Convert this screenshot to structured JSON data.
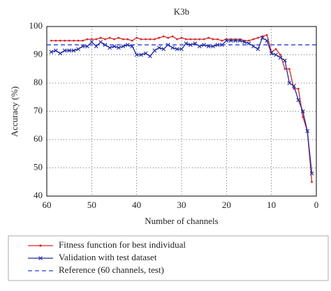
{
  "chart_data": {
    "type": "line",
    "title": "K3b",
    "xlabel": "Number of channels",
    "ylabel": "Accuracy (%)",
    "xlim": [
      60,
      0
    ],
    "xticks": [
      60,
      50,
      40,
      30,
      20,
      10,
      0
    ],
    "ylim": [
      40,
      100
    ],
    "yticks": [
      40,
      50,
      60,
      70,
      80,
      90,
      100
    ],
    "grid": true,
    "series": [
      {
        "name": "Fitness function for best individual",
        "color": "#d62728",
        "marker": "dot",
        "dash": false,
        "x": [
          59,
          58,
          57,
          56,
          55,
          54,
          53,
          52,
          51,
          50,
          49,
          48,
          47,
          46,
          45,
          44,
          43,
          42,
          41,
          40,
          39,
          38,
          37,
          36,
          35,
          34,
          33,
          32,
          31,
          30,
          29,
          28,
          27,
          26,
          25,
          24,
          23,
          22,
          21,
          20,
          19,
          18,
          17,
          16,
          15,
          14,
          13,
          12,
          11,
          10,
          9,
          8,
          7,
          6,
          5,
          4,
          3,
          2,
          1
        ],
        "values": [
          95,
          95,
          95,
          95,
          95,
          95,
          95,
          95,
          95.5,
          95.5,
          95.5,
          96,
          95.5,
          96,
          95.5,
          96,
          95.5,
          95.5,
          95,
          96,
          95.5,
          95.5,
          95.5,
          95.5,
          96,
          96.5,
          96,
          96.5,
          95.5,
          96,
          95.5,
          95.5,
          95.5,
          95.5,
          95.5,
          96,
          95.5,
          95.5,
          95,
          95.5,
          95.5,
          95.5,
          95.5,
          95,
          95,
          95.5,
          96,
          96.5,
          97,
          91,
          92,
          90,
          85,
          85,
          78,
          78,
          68,
          63,
          45
        ]
      },
      {
        "name": "Validation with test dataset",
        "color": "#1f2a9c",
        "marker": "x",
        "dash": false,
        "x": [
          59,
          58,
          57,
          56,
          55,
          54,
          53,
          52,
          51,
          50,
          49,
          48,
          47,
          46,
          45,
          44,
          43,
          42,
          41,
          40,
          39,
          38,
          37,
          36,
          35,
          34,
          33,
          32,
          31,
          30,
          29,
          28,
          27,
          26,
          25,
          24,
          23,
          22,
          21,
          20,
          19,
          18,
          17,
          16,
          15,
          14,
          13,
          12,
          11,
          10,
          9,
          8,
          7,
          6,
          5,
          4,
          3,
          2,
          1
        ],
        "values": [
          91,
          91.5,
          90.5,
          91.5,
          91.5,
          91.5,
          92,
          93,
          93,
          94.5,
          93,
          94.5,
          93.5,
          92.5,
          93,
          92.5,
          93,
          93.5,
          93,
          90,
          90,
          90.5,
          89.5,
          91.5,
          92.5,
          92,
          93.5,
          92.5,
          92,
          92,
          94,
          93.5,
          94,
          93,
          93.5,
          93,
          93,
          93.5,
          93.5,
          95,
          95,
          95,
          95,
          94.5,
          94,
          93,
          92,
          96,
          95,
          90.5,
          90,
          89,
          88,
          80,
          79,
          74,
          70,
          63,
          48
        ]
      },
      {
        "name": "Reference (60 channels, test)",
        "color": "#2b3fd6",
        "marker": "none",
        "dash": true,
        "x": [
          60,
          0
        ],
        "values": [
          93.5,
          93.5
        ]
      }
    ]
  }
}
